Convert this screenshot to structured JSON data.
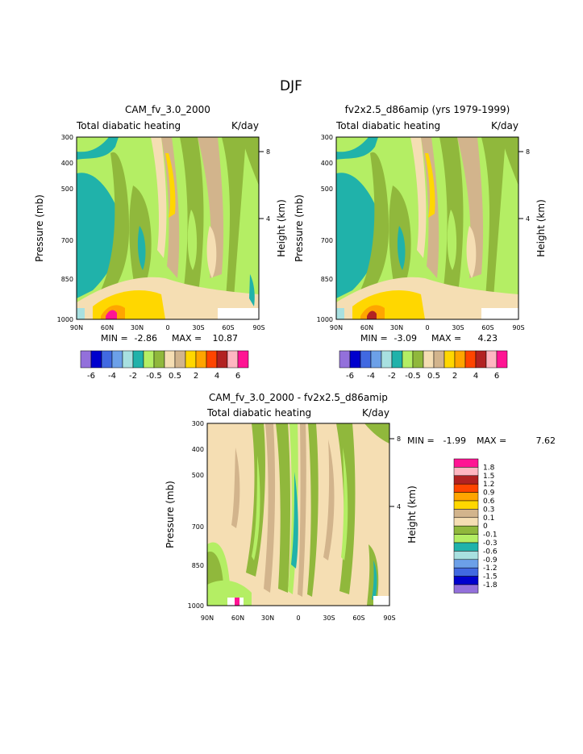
{
  "page": {
    "season_title": "DJF"
  },
  "chart_data": [
    {
      "type": "heatmap",
      "title": "CAM_fv_3.0_2000",
      "subtitle_left": "Total diabatic heating",
      "subtitle_right": "K/day",
      "ylabel": "Pressure (mb)",
      "ylabel_right": "Height (km)",
      "x_ticks": [
        "90N",
        "60N",
        "30N",
        "0",
        "30S",
        "60S",
        "90S"
      ],
      "y_ticks": [
        "300",
        "400",
        "500",
        "700",
        "850",
        "1000"
      ],
      "y_right_ticks": [
        "8",
        "4"
      ],
      "min_label": "MIN =",
      "min_value": "-2.86",
      "max_label": "MAX =",
      "max_value": "10.87"
    },
    {
      "type": "heatmap",
      "title": "fv2x2.5_d86amip (yrs 1979-1999)",
      "subtitle_left": "Total diabatic heating",
      "subtitle_right": "K/day",
      "ylabel": "Pressure (mb)",
      "ylabel_right": "Height (km)",
      "x_ticks": [
        "90N",
        "60N",
        "30N",
        "0",
        "30S",
        "60S",
        "90S"
      ],
      "y_ticks": [
        "300",
        "400",
        "500",
        "700",
        "850",
        "1000"
      ],
      "y_right_ticks": [
        "8",
        "4"
      ],
      "min_label": "MIN =",
      "min_value": "-3.09",
      "max_label": "MAX =",
      "max_value": "4.23"
    },
    {
      "type": "heatmap",
      "title": "CAM_fv_3.0_2000 - fv2x2.5_d86amip",
      "subtitle_left": "Total diabatic heating",
      "subtitle_right": "K/day",
      "ylabel": "Pressure (mb)",
      "ylabel_right": "Height (km)",
      "x_ticks": [
        "90N",
        "60N",
        "30N",
        "0",
        "30S",
        "60S",
        "90S"
      ],
      "y_ticks": [
        "300",
        "400",
        "500",
        "700",
        "850",
        "1000"
      ],
      "y_right_ticks": [
        "8",
        "4"
      ],
      "min_label": "MIN =",
      "min_value": "-1.99",
      "max_label": "MAX =",
      "max_value": "7.62"
    }
  ],
  "colorbar_top": {
    "colors": [
      "#9370db",
      "#0000cd",
      "#4169e1",
      "#6ca0e8",
      "#a8e0e0",
      "#20b2aa",
      "#b4ee64",
      "#90b83c",
      "#f5deb3",
      "#d2b48c",
      "#ffd700",
      "#ffa500",
      "#ff4500",
      "#b22222",
      "#ffb6c1",
      "#ff1493"
    ],
    "labels": [
      "-6",
      "-4",
      "-2",
      "-0.5",
      "0.5",
      "2",
      "4",
      "6"
    ]
  },
  "colorbar_diff": {
    "colors": [
      "#ff1493",
      "#ffb6c1",
      "#b22222",
      "#ff4500",
      "#ffa500",
      "#ffd700",
      "#d2b48c",
      "#f5deb3",
      "#90b83c",
      "#b4ee64",
      "#20b2aa",
      "#a8e0e0",
      "#6ca0e8",
      "#4169e1",
      "#0000cd",
      "#9370db"
    ],
    "labels": [
      "1.8",
      "1.5",
      "1.2",
      "0.9",
      "0.6",
      "0.3",
      "0.1",
      "0",
      "-0.1",
      "-0.3",
      "-0.6",
      "-0.9",
      "-1.2",
      "-1.5",
      "-1.8"
    ]
  }
}
